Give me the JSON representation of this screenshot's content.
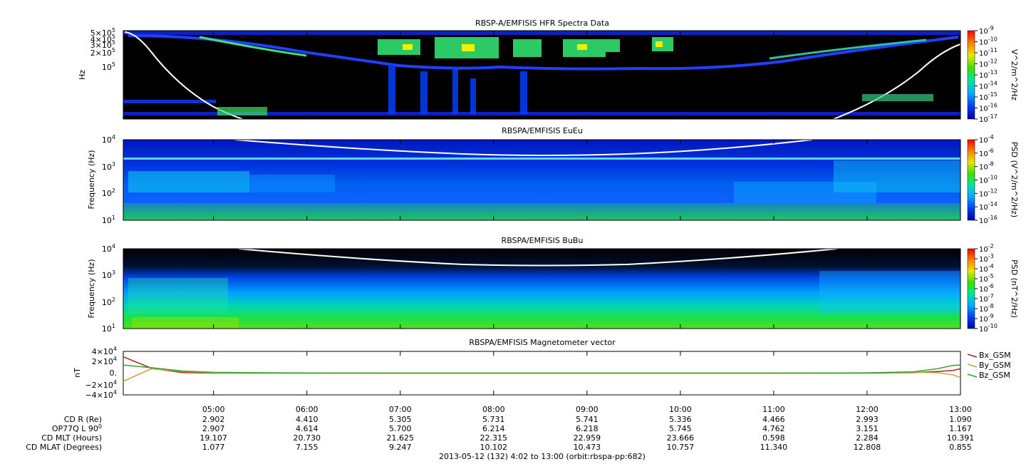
{
  "colors": {
    "background": "#000000",
    "spectrum_low": "#0000cc",
    "spectrum_mid": "#00e060",
    "spectrum_high": "#ff0000",
    "trace": "#ffffff",
    "bx": "#b22222",
    "by": "#c8a040",
    "bz": "#2ea82e"
  },
  "panels": [
    {
      "key": "hfr",
      "title": "RBSP-A/EMFISIS  HFR Spectra Data",
      "ylabel": "Hz",
      "yticks": [
        "5×10",
        "4×10",
        "3×10",
        "2×10",
        "1×10"
      ],
      "ytick_exp": [
        "5",
        "5",
        "5",
        "5",
        "5"
      ],
      "cbar_label": "V^2/m^2/Hz",
      "cbar_ticks": [
        "-9",
        "-10",
        "-11",
        "-12",
        "-13",
        "-14",
        "-15",
        "-16",
        "-17"
      ]
    },
    {
      "key": "eueu",
      "title": "RBSPA/EMFISIS  EuEu",
      "ylabel": "Frequency (Hz)",
      "yticks": [
        "10",
        "10",
        "10",
        "10"
      ],
      "ytick_exp": [
        "4",
        "3",
        "2",
        "1"
      ],
      "cbar_label": "PSD (V^2/m^2/Hz)",
      "cbar_ticks": [
        "-4",
        "-6",
        "-8",
        "-10",
        "-12",
        "-14",
        "-16"
      ]
    },
    {
      "key": "bubu",
      "title": "RBSPA/EMFISIS  BuBu",
      "ylabel": "Frequency (Hz)",
      "yticks": [
        "10",
        "10",
        "10",
        "10"
      ],
      "ytick_exp": [
        "4",
        "3",
        "2",
        "1"
      ],
      "cbar_label": "PSD (nT^2/Hz)",
      "cbar_ticks": [
        "-2",
        "-3",
        "-4",
        "-5",
        "-6",
        "-7",
        "-8",
        "-9",
        "-10"
      ]
    },
    {
      "key": "mag",
      "title": "RBSPA/EMFISIS  Magnetometer vector",
      "ylabel": "nT",
      "yticks": [
        "4×10",
        "2×10",
        "0.",
        "−2×10",
        "−4×10"
      ],
      "ytick_exp": [
        "4",
        "4",
        "",
        "4",
        "4"
      ]
    }
  ],
  "chart_data": [
    {
      "type": "heatmap",
      "title": "RBSP-A/EMFISIS  HFR Spectra Data",
      "ylabel": "Hz",
      "yscale": "log",
      "colorbar": "V^2/m^2/Hz",
      "colorbar_range": [
        1e-17,
        1e-09
      ]
    },
    {
      "type": "heatmap",
      "title": "RBSPA/EMFISIS  EuEu",
      "ylabel": "Frequency (Hz)",
      "yscale": "log",
      "ylim": [
        10,
        10000
      ],
      "colorbar": "PSD (V^2/m^2/Hz)",
      "colorbar_range": [
        1e-16,
        0.0001
      ]
    },
    {
      "type": "heatmap",
      "title": "RBSPA/EMFISIS  BuBu",
      "ylabel": "Frequency (Hz)",
      "yscale": "log",
      "ylim": [
        10,
        10000
      ],
      "colorbar": "PSD (nT^2/Hz)",
      "colorbar_range": [
        1e-10,
        0.01
      ]
    },
    {
      "type": "line",
      "title": "RBSPA/EMFISIS  Magnetometer vector",
      "ylabel": "nT",
      "ylim": [
        -40000,
        40000
      ],
      "x": [
        "04:02",
        "04:20",
        "04:40",
        "05:00",
        "06:00",
        "07:00",
        "08:00",
        "09:00",
        "10:00",
        "11:00",
        "12:00",
        "12:30",
        "12:45",
        "12:55",
        "13:00"
      ],
      "series": [
        {
          "name": "Bx_GSM",
          "values": [
            30000,
            9000,
            1000,
            0,
            0,
            0,
            0,
            0,
            0,
            0,
            0,
            1000,
            3000,
            5000,
            8000
          ]
        },
        {
          "name": "By_GSM",
          "values": [
            -15000,
            8000,
            3000,
            500,
            0,
            0,
            0,
            0,
            0,
            0,
            500,
            1500,
            1000,
            -3000,
            -8000
          ]
        },
        {
          "name": "Bz_GSM",
          "values": [
            15000,
            10000,
            4000,
            1500,
            200,
            0,
            0,
            0,
            0,
            0,
            500,
            2500,
            8000,
            14000,
            15000
          ]
        }
      ],
      "legend": "right"
    }
  ],
  "xaxis": {
    "time_ticks": [
      "05:00",
      "06:00",
      "07:00",
      "08:00",
      "09:00",
      "10:00",
      "11:00",
      "12:00",
      "13:00"
    ],
    "rows": [
      {
        "label": "CD R (Re)",
        "values": [
          "2.902",
          "4.410",
          "5.305",
          "5.731",
          "5.741",
          "5.336",
          "4.466",
          "2.993",
          "1.090"
        ]
      },
      {
        "label": "OP77Q L 90",
        "sup": "0",
        "values": [
          "2.907",
          "4.614",
          "5.700",
          "6.214",
          "6.218",
          "5.745",
          "4.762",
          "3.151",
          "1.167"
        ]
      },
      {
        "label": "CD MLT (Hours)",
        "values": [
          "19.107",
          "20.730",
          "21.625",
          "22.315",
          "22.959",
          "23.666",
          "0.598",
          "2.284",
          "10.391"
        ]
      },
      {
        "label": "CD MLAT (Degrees)",
        "values": [
          "1.077",
          "7.155",
          "9.247",
          "10.102",
          "10.473",
          "10.757",
          "11.340",
          "12.808",
          "0.855"
        ]
      }
    ],
    "footer": "2013-05-12 (132) 4:02 to 13:00 (orbit:rbspa-pp:682)"
  }
}
